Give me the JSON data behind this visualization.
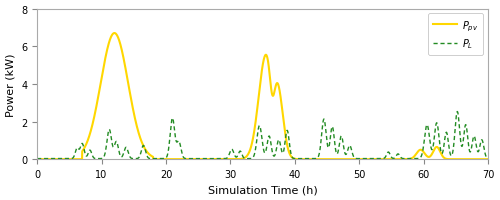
{
  "xlabel": "Simulation Time (h)",
  "ylabel": "Power (kW)",
  "xlim": [
    0,
    70
  ],
  "ylim": [
    0,
    8
  ],
  "xticks": [
    0,
    10,
    20,
    30,
    40,
    50,
    60,
    70
  ],
  "yticks": [
    0,
    2,
    4,
    6,
    8
  ],
  "pv_color": "#FFD700",
  "load_color": "#228B22",
  "pv_label": "$P_{pv}$",
  "load_label": "$P_L$",
  "background_color": "#ffffff",
  "legend_loc": "upper right",
  "figsize": [
    5.0,
    2.01
  ],
  "dpi": 100
}
